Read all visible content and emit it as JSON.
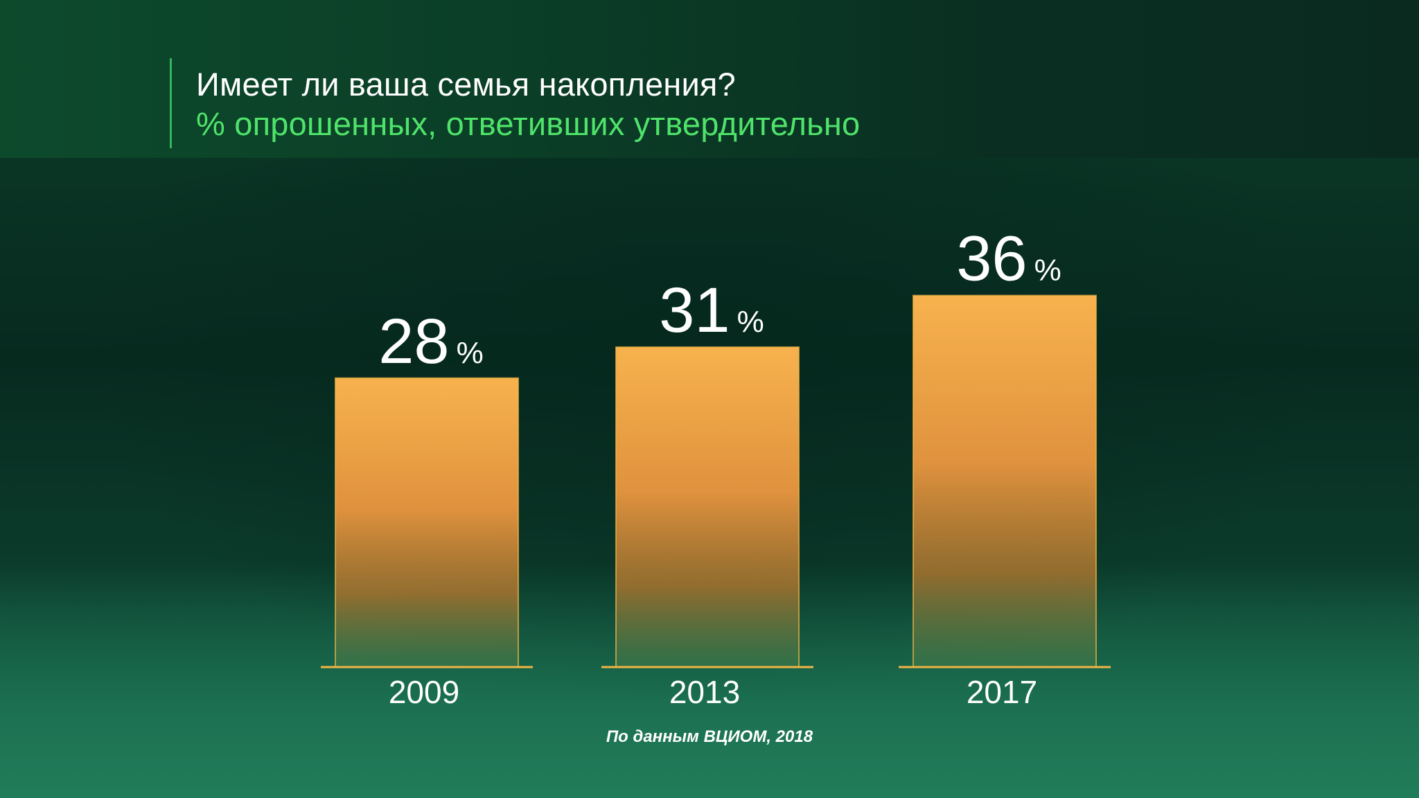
{
  "header": {
    "title": "Имеет ли ваша семья накопления?",
    "subtitle": "% опрошенных, ответивших утвердительно"
  },
  "chart_data": {
    "type": "bar",
    "categories": [
      "2009",
      "2013",
      "2017"
    ],
    "values": [
      28,
      31,
      36
    ],
    "value_labels": [
      "28",
      "31",
      "36"
    ],
    "value_suffix": "%",
    "title": "Имеет ли ваша семья накопления?",
    "subtitle": "% опрошенных, ответивших утвердительно",
    "xlabel": "",
    "ylabel": "",
    "grid": false,
    "legend": "none",
    "bar_color_top": "#f7b24d",
    "bar_color_mid": "#d98a3a",
    "baseline_color": "#f2b544"
  },
  "footer": {
    "source": "По данным ВЦИОМ, 2018"
  },
  "colors": {
    "title": "#ffffff",
    "subtitle": "#4fe36a",
    "accent_rule": "#35b55f"
  }
}
